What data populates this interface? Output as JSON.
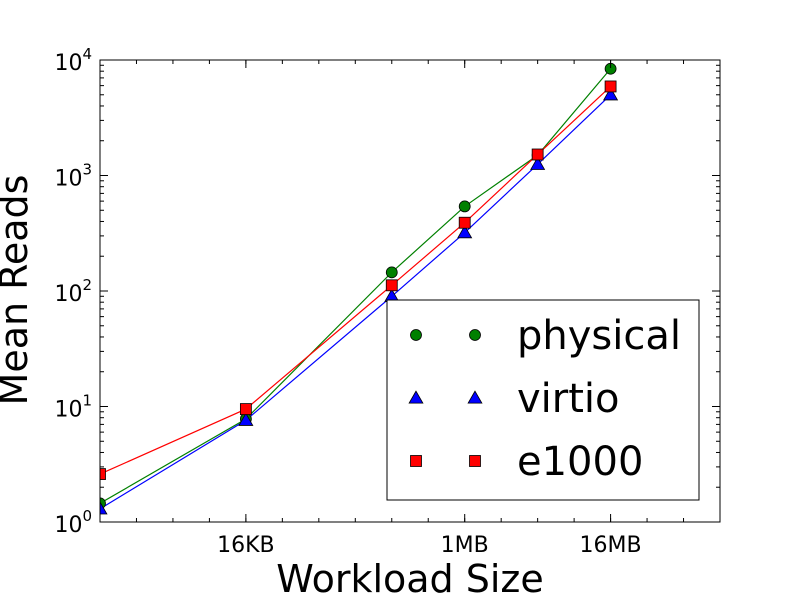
{
  "chart_data": {
    "type": "line",
    "title": "",
    "xlabel": "Workload Size",
    "ylabel": "Mean Reads",
    "x_scale": "log2",
    "y_scale": "log10",
    "x_unit": "bytes",
    "xlim": [
      1024,
      134217728
    ],
    "ylim": [
      1,
      10000
    ],
    "x_ticks": [
      {
        "value": 16384,
        "label": "16KB"
      },
      {
        "value": 1048576,
        "label": "1MB"
      },
      {
        "value": 16777216,
        "label": "16MB"
      }
    ],
    "y_ticks": [
      {
        "value": 1,
        "base": "10",
        "exp": "0"
      },
      {
        "value": 10,
        "base": "10",
        "exp": "1"
      },
      {
        "value": 100,
        "base": "10",
        "exp": "2"
      },
      {
        "value": 1000,
        "base": "10",
        "exp": "3"
      },
      {
        "value": 10000,
        "base": "10",
        "exp": "4"
      }
    ],
    "x": [
      1024,
      16384,
      262144,
      1048576,
      4194304,
      16777216
    ],
    "series": [
      {
        "name": "physical",
        "color": "#008000",
        "marker": "circle",
        "values": [
          1.45,
          7.8,
          145,
          540,
          1500,
          8400
        ]
      },
      {
        "name": "virtio",
        "color": "#0000ff",
        "marker": "triangle",
        "values": [
          1.3,
          7.6,
          90,
          320,
          1250,
          5000
        ]
      },
      {
        "name": "e1000",
        "color": "#ff0000",
        "marker": "square",
        "values": [
          2.6,
          9.5,
          112,
          390,
          1520,
          5900
        ]
      }
    ],
    "legend_position": "lower-right",
    "grid": false
  }
}
